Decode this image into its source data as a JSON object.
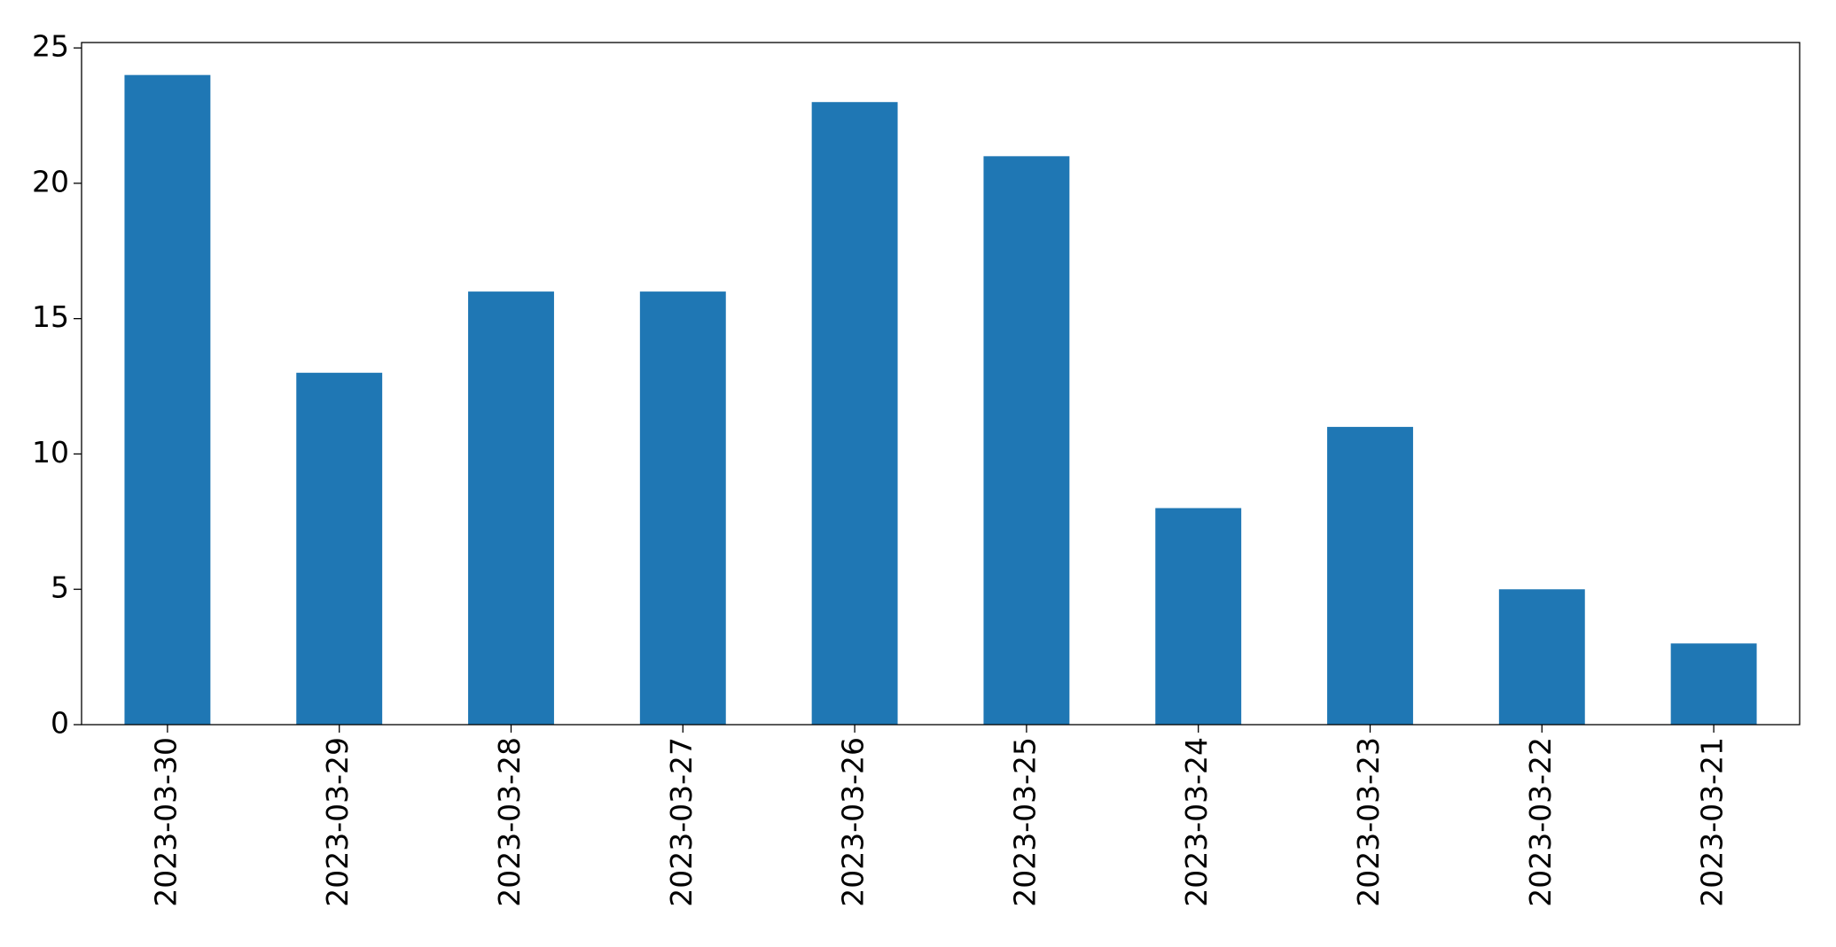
{
  "chart_data": {
    "type": "bar",
    "categories": [
      "2023-03-30",
      "2023-03-29",
      "2023-03-28",
      "2023-03-27",
      "2023-03-26",
      "2023-03-25",
      "2023-03-24",
      "2023-03-23",
      "2023-03-22",
      "2023-03-21"
    ],
    "values": [
      24,
      13,
      16,
      16,
      23,
      21,
      8,
      11,
      5,
      3
    ],
    "color": "#1f77b4",
    "ylim": [
      0,
      25.2
    ],
    "yticks": [
      0,
      5,
      10,
      15,
      20,
      25
    ],
    "grid": false
  }
}
